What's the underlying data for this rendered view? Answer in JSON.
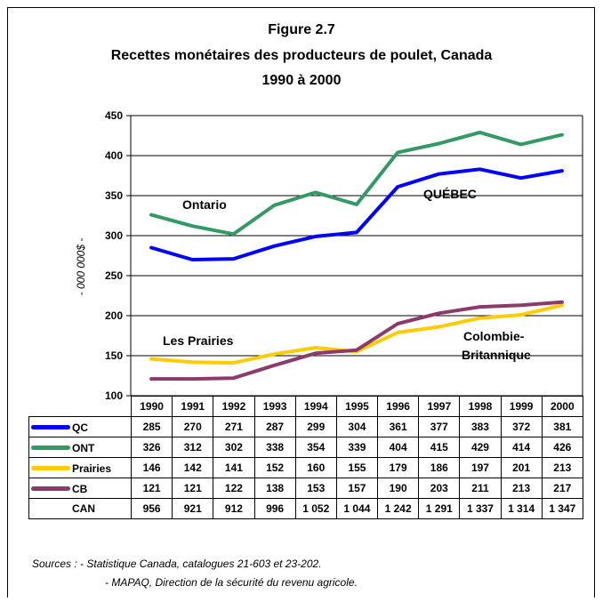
{
  "figure_number": "Figure 2.7",
  "title_line1": "Recettes monétaires des producteurs de poulet, Canada",
  "title_line2": "1990 à 2000",
  "chart_data": {
    "type": "line",
    "title": "Recettes monétaires des producteurs de poulet, Canada 1990 à 2000",
    "ylabel": "- 000 000$ -",
    "xlabel": "",
    "ylim": [
      100,
      450
    ],
    "yticks": [
      100,
      150,
      200,
      250,
      300,
      350,
      400,
      450
    ],
    "grid": true,
    "categories": [
      "1990",
      "1991",
      "1992",
      "1993",
      "1994",
      "1995",
      "1996",
      "1997",
      "1998",
      "1999",
      "2000"
    ],
    "series": [
      {
        "name": "QC",
        "color": "#0000ff",
        "values": [
          285,
          270,
          271,
          287,
          299,
          304,
          361,
          377,
          383,
          372,
          381
        ]
      },
      {
        "name": "ONT",
        "color": "#339966",
        "values": [
          326,
          312,
          302,
          338,
          354,
          339,
          404,
          415,
          429,
          414,
          426
        ]
      },
      {
        "name": "Prairies",
        "color": "#ffcc00",
        "values": [
          146,
          142,
          141,
          152,
          160,
          155,
          179,
          186,
          197,
          201,
          213
        ]
      },
      {
        "name": "CB",
        "color": "#8b3a6b",
        "values": [
          121,
          121,
          122,
          138,
          153,
          157,
          190,
          203,
          211,
          213,
          217
        ]
      }
    ],
    "annotations": [
      {
        "text": "Ontario"
      },
      {
        "text": "QUÉBEC"
      },
      {
        "text": "Les Prairies"
      },
      {
        "text": "Colombie-"
      },
      {
        "text": "Britannique"
      }
    ],
    "table_rows": [
      {
        "label": "QC",
        "color": "#0000ff",
        "values": [
          "285",
          "270",
          "271",
          "287",
          "299",
          "304",
          "361",
          "377",
          "383",
          "372",
          "381"
        ]
      },
      {
        "label": "ONT",
        "color": "#339966",
        "values": [
          "326",
          "312",
          "302",
          "338",
          "354",
          "339",
          "404",
          "415",
          "429",
          "414",
          "426"
        ]
      },
      {
        "label": "Prairies",
        "color": "#ffcc00",
        "values": [
          "146",
          "142",
          "141",
          "152",
          "160",
          "155",
          "179",
          "186",
          "197",
          "201",
          "213"
        ]
      },
      {
        "label": "CB",
        "color": "#8b3a6b",
        "values": [
          "121",
          "121",
          "122",
          "138",
          "153",
          "157",
          "190",
          "203",
          "211",
          "213",
          "217"
        ]
      },
      {
        "label": "CAN",
        "color": "",
        "values": [
          "956",
          "921",
          "912",
          "996",
          "1 052",
          "1 044",
          "1 242",
          "1 291",
          "1 337",
          "1 314",
          "1 347"
        ]
      }
    ]
  },
  "sources": {
    "line1": "Sources :  - Statistique Canada,  catalogues 21-603 et 23-202.",
    "line2": "- MAPAQ, Direction de la sécurité du revenu agricole."
  }
}
